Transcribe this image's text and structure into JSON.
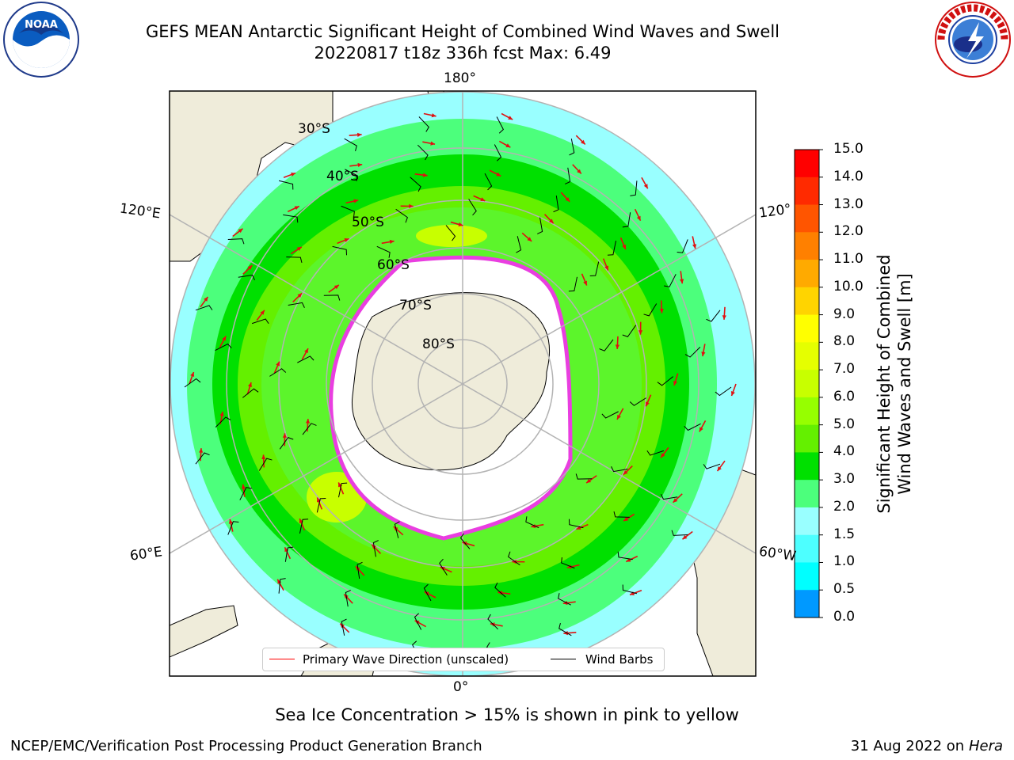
{
  "title_line1": "GEFS MEAN Antarctic Significant Height of Combined Wind Waves and Swell",
  "title_line2": "20220817 t18z 336h fcst   Max: 6.49",
  "logos": {
    "left": "NOAA",
    "right": "NATIONAL WEATHER SERVICE"
  },
  "map": {
    "lon_labels": {
      "top": "180°",
      "bottom": "0°",
      "left_upper": "120°E",
      "left_lower": "60°E",
      "right_upper": "120°",
      "right_lower": "60°W"
    },
    "lat_labels": [
      "30°S",
      "40°S",
      "50°S",
      "60°S",
      "70°S",
      "80°S"
    ],
    "colors": {
      "land": "#efecda",
      "ice": "#ffffff",
      "ice_edge": "#e93ee0",
      "coast": "#000000",
      "grid": "#b3b3b3",
      "wave_arrow": "#ff1a1a",
      "wind_barb": "#000000"
    }
  },
  "legend": {
    "wave_label": "Primary Wave Direction (unscaled)",
    "barb_label": "Wind Barbs",
    "wave_color": "#ff0000",
    "barb_color": "#000000"
  },
  "colorbar": {
    "label_line1": "Significant Height of Combined",
    "label_line2": "Wind Waves and Swell [m]",
    "ticks": [
      "15.0",
      "14.0",
      "13.0",
      "12.0",
      "11.0",
      "10.0",
      "9.0",
      "8.0",
      "7.0",
      "6.0",
      "5.0",
      "4.0",
      "3.0",
      "2.0",
      "1.5",
      "1.0",
      "0.5",
      "0.0"
    ],
    "colors": [
      "#ff0000",
      "#ff2a00",
      "#ff5500",
      "#ff8000",
      "#ffaa00",
      "#ffd400",
      "#ffff00",
      "#e5ff00",
      "#c8ff00",
      "#96ff00",
      "#64f000",
      "#00e000",
      "#4cff7c",
      "#99ffff",
      "#4dffff",
      "#00ffff",
      "#0099ff",
      "#0066ff",
      "#0000ff"
    ]
  },
  "caption": "Sea Ice Concentration > 15% is shown in pink to yellow",
  "footer_left": "NCEP/EMC/Verification Post Processing Product Generation Branch",
  "footer_right_date": "31 Aug 2022 on",
  "footer_right_machine": "Hera"
}
